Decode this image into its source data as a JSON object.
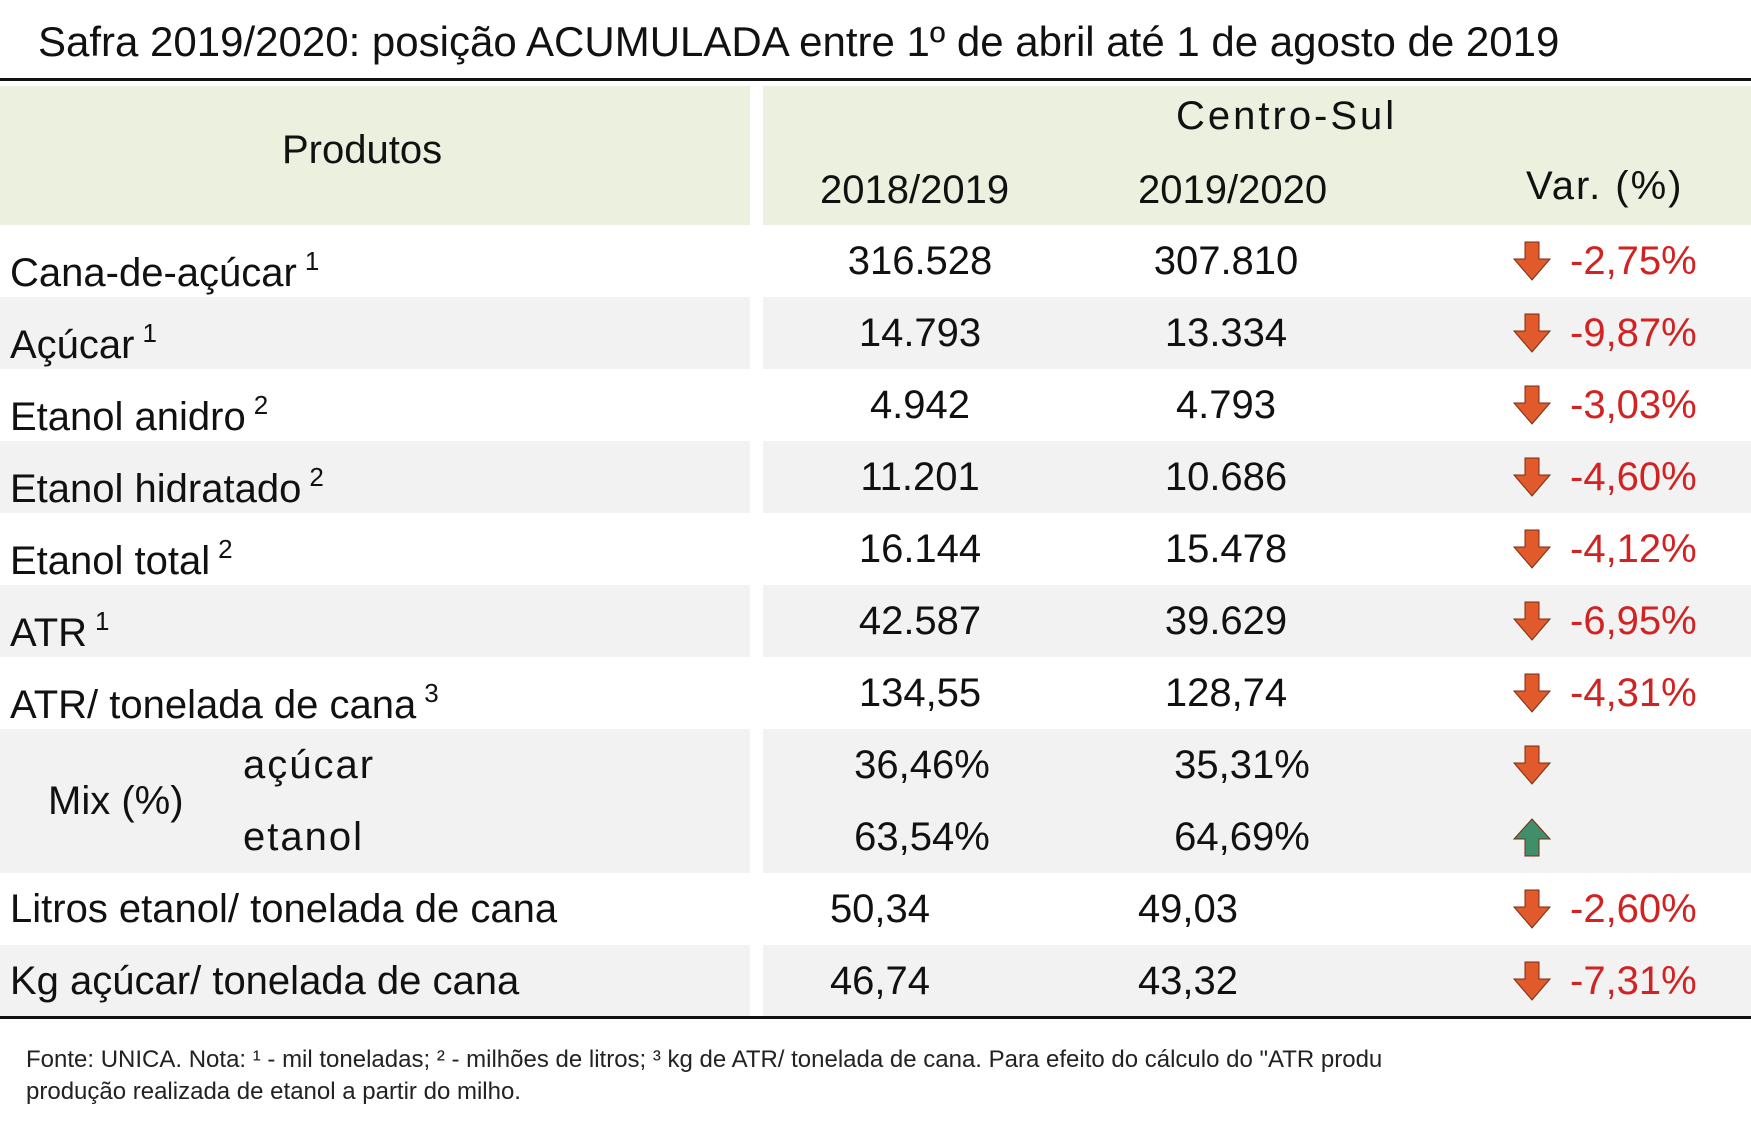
{
  "title": "Safra 2019/2020: posição ACUMULADA entre 1º de abril até 1 de agosto de 2019",
  "header": {
    "produtos": "Produtos",
    "region": "Centro-Sul",
    "col1": "2018/2019",
    "col2": "2019/2020",
    "col3": "Var. (%)"
  },
  "rows": [
    {
      "label": "Cana-de-açúcar",
      "sup": "1",
      "v1": "316.528",
      "v2": "307.810",
      "var": "-2,75%",
      "dir": "down"
    },
    {
      "label": "Açúcar",
      "sup": "1",
      "v1": "14.793",
      "v2": "13.334",
      "var": "-9,87%",
      "dir": "down"
    },
    {
      "label": "Etanol anidro",
      "sup": "2",
      "v1": "4.942",
      "v2": "4.793",
      "var": "-3,03%",
      "dir": "down"
    },
    {
      "label": "Etanol hidratado",
      "sup": "2",
      "v1": "11.201",
      "v2": "10.686",
      "var": "-4,60%",
      "dir": "down"
    },
    {
      "label": "Etanol total",
      "sup": "2",
      "v1": "16.144",
      "v2": "15.478",
      "var": "-4,12%",
      "dir": "down"
    },
    {
      "label": "ATR",
      "sup": "1",
      "v1": "42.587",
      "v2": "39.629",
      "var": "-6,95%",
      "dir": "down"
    },
    {
      "label": "ATR/ tonelada de cana",
      "sup": "3",
      "v1": "134,55",
      "v2": "128,74",
      "var": "-4,31%",
      "dir": "down"
    }
  ],
  "mix": {
    "label": "Mix (%)",
    "items": [
      {
        "label": "açúcar",
        "v1": "36,46%",
        "v2": "35,31%",
        "dir": "down"
      },
      {
        "label": "etanol",
        "v1": "63,54%",
        "v2": "64,69%",
        "dir": "up"
      }
    ]
  },
  "tail_rows": [
    {
      "label": "Litros etanol/ tonelada de cana",
      "v1": "50,34",
      "v2": "49,03",
      "var": "-2,60%",
      "dir": "down"
    },
    {
      "label": "Kg açúcar/ tonelada de cana",
      "v1": "46,74",
      "v2": "43,32",
      "var": "-7,31%",
      "dir": "down"
    }
  ],
  "footnote": {
    "line1": "Fonte: UNICA. Nota: ¹ - mil toneladas; ² - milhões de litros; ³    kg de ATR/ tonelada de cana. Para efeito do cálculo do \"ATR produ",
    "line2": "produção realizada de etanol a partir do milho."
  },
  "colors": {
    "header_bg": "#ebf1de",
    "band_bg": "#f2f2f2",
    "down": "#e05a2b",
    "up": "#3f8f6a",
    "var_text": "#d22222"
  },
  "icons": {
    "down": "arrow-down-icon",
    "up": "arrow-up-icon"
  }
}
